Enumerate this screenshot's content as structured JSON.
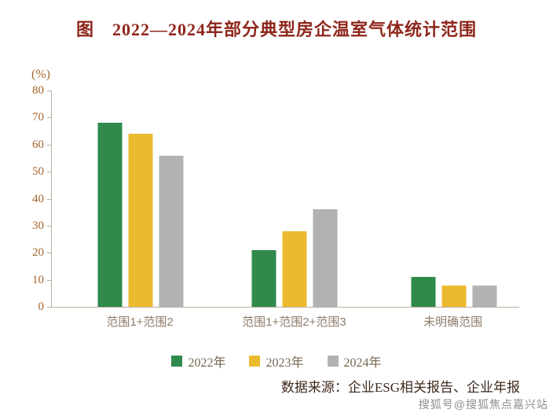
{
  "figure": {
    "title": "图　2022—2024年部分典型房企温室气体统计范围",
    "source_text": "数据来源：企业ESG相关报告、企业年报",
    "watermark": "搜狐号@搜狐焦点嘉兴站"
  },
  "chart_data": {
    "type": "bar",
    "title": "2022—2024年部分典型房企温室气体统计范围",
    "ylabel": "(%)",
    "xlabel": "",
    "ylim": [
      0,
      80
    ],
    "ytick_step": 10,
    "grid": false,
    "legend_position": "bottom",
    "categories": [
      "范围1+范围2",
      "范围1+范围2+范围3",
      "未明确范围"
    ],
    "series": [
      {
        "name": "2022年",
        "color": "#2f8a4c",
        "values": [
          68,
          21,
          11
        ]
      },
      {
        "name": "2023年",
        "color": "#ecba2f",
        "values": [
          64,
          28,
          8
        ]
      },
      {
        "name": "2024年",
        "color": "#b2b2b2",
        "values": [
          56,
          36,
          8
        ]
      }
    ]
  }
}
